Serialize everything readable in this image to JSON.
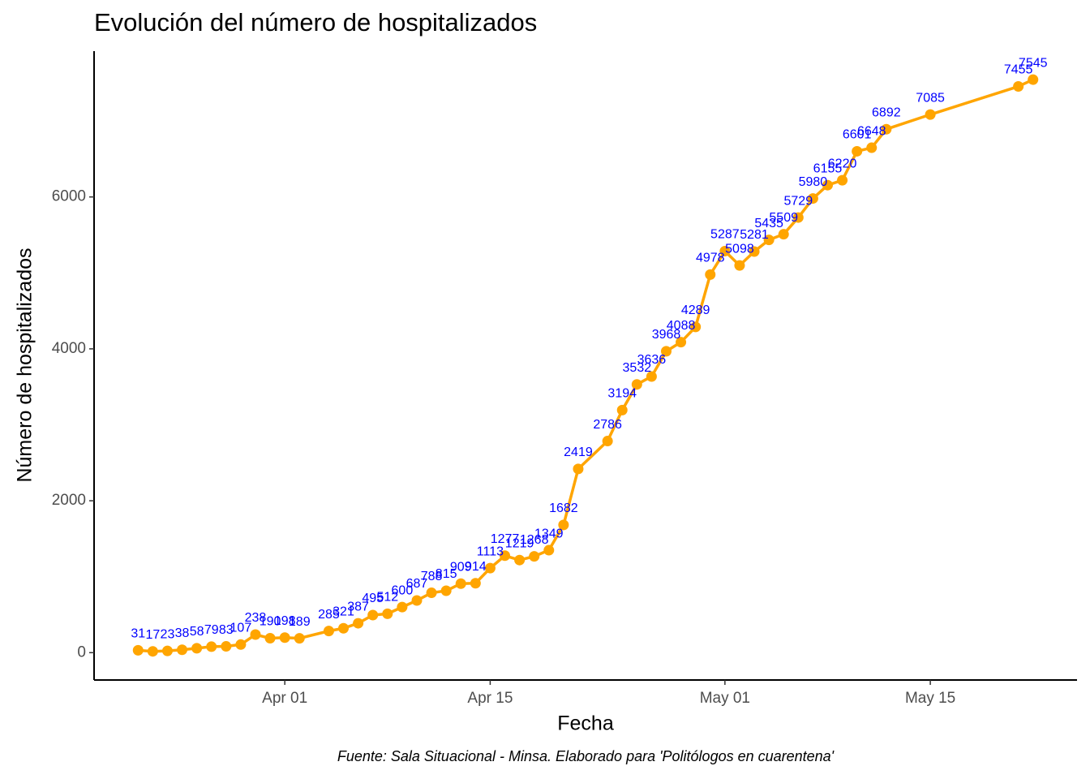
{
  "chart_data": {
    "type": "line",
    "title": "Evolución del número de hospitalizados",
    "x_label": "Fecha",
    "y_label": "Número de hospitalizados",
    "caption": "Fuente: Sala Situacional - Minsa. Elaborado para 'Politólogos en cuarentena'",
    "x": [
      "Mar 22",
      "Mar 23",
      "Mar 24",
      "Mar 25",
      "Mar 26",
      "Mar 27",
      "Mar 28",
      "Mar 29",
      "Mar 30",
      "Mar 31",
      "Apr 01",
      "Apr 02",
      "Apr 04",
      "Apr 05",
      "Apr 06",
      "Apr 07",
      "Apr 08",
      "Apr 09",
      "Apr 10",
      "Apr 11",
      "Apr 12",
      "Apr 13",
      "Apr 14",
      "Apr 15",
      "Apr 16",
      "Apr 17",
      "Apr 18",
      "Apr 19",
      "Apr 20",
      "Apr 21",
      "Apr 23",
      "Apr 24",
      "Apr 25",
      "Apr 26",
      "Apr 27",
      "Apr 28",
      "Apr 29",
      "Apr 30",
      "May 01",
      "May 02",
      "May 03",
      "May 04",
      "May 05",
      "May 06",
      "May 07",
      "May 08",
      "May 09",
      "May 10",
      "May 11",
      "May 12",
      "May 15",
      "May 21",
      "May 22"
    ],
    "series": [
      {
        "name": "Hospitalizados",
        "color": "#ffa500",
        "label_color": "#0000ff",
        "values": [
          31,
          17,
          23,
          38,
          58,
          79,
          83,
          107,
          238,
          190,
          198,
          189,
          285,
          321,
          387,
          495,
          512,
          600,
          687,
          788,
          815,
          909,
          914,
          1113,
          1277,
          1219,
          1268,
          1349,
          1682,
          2419,
          2786,
          3194,
          3532,
          3636,
          3968,
          4088,
          4289,
          4978,
          5287,
          5098,
          5281,
          5435,
          5509,
          5729,
          5980,
          6155,
          6220,
          6601,
          6648,
          6892,
          7085,
          7455,
          7545
        ]
      }
    ],
    "xlim": [
      "Mar 19",
      "May 25"
    ],
    "xticks": [
      "Apr 01",
      "Apr 15",
      "May 01",
      "May 15"
    ],
    "ylim": [
      -360,
      7920
    ],
    "yticks": [
      0,
      2000,
      4000,
      6000
    ],
    "grid": false
  }
}
